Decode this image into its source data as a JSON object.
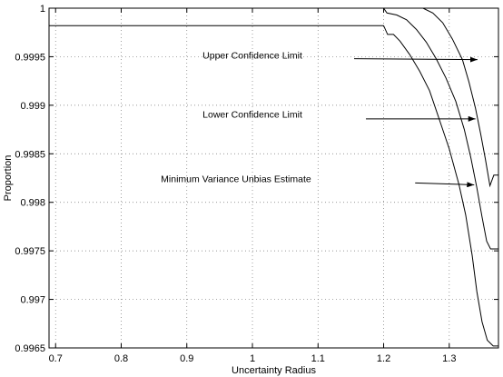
{
  "chart_data": {
    "type": "line",
    "title": "",
    "xlabel": "Uncertainty Radius",
    "ylabel": "Proportion",
    "xlim": [
      0.69,
      1.375
    ],
    "ylim": [
      0.9965,
      1.0
    ],
    "grid": true,
    "x_ticks": [
      0.7,
      0.8,
      0.9,
      1.0,
      1.1,
      1.2,
      1.3
    ],
    "x_tick_labels": [
      "0.7",
      "0.8",
      "0.9",
      "1",
      "1.1",
      "1.2",
      "1.3"
    ],
    "y_ticks": [
      0.9965,
      0.997,
      0.9975,
      0.998,
      0.9985,
      0.999,
      0.9995,
      1.0
    ],
    "y_tick_labels": [
      "0.9965",
      "0.997",
      "0.9975",
      "0.998",
      "0.9985",
      "0.999",
      "0.9995",
      "1"
    ],
    "series": [
      {
        "values": [
          [
            0.69,
            1.0
          ],
          [
            1.26,
            1.0
          ],
          [
            1.275,
            0.99995
          ],
          [
            1.29,
            0.99985
          ],
          [
            1.305,
            0.99968
          ],
          [
            1.32,
            0.99947
          ],
          [
            1.33,
            0.99924
          ],
          [
            1.34,
            0.99897
          ],
          [
            1.348,
            0.9987
          ],
          [
            1.355,
            0.99845
          ],
          [
            1.362,
            0.99817
          ],
          [
            1.368,
            0.99828
          ],
          [
            1.375,
            0.99828
          ]
        ]
      },
      {
        "values": [
          [
            1.2,
            1.0
          ],
          [
            1.205,
            0.99995
          ],
          [
            1.22,
            0.99993
          ],
          [
            1.235,
            0.99988
          ],
          [
            1.25,
            0.99978
          ],
          [
            1.265,
            0.99965
          ],
          [
            1.28,
            0.99948
          ],
          [
            1.295,
            0.99928
          ],
          [
            1.31,
            0.99904
          ],
          [
            1.323,
            0.99875
          ],
          [
            1.333,
            0.99846
          ],
          [
            1.342,
            0.99815
          ],
          [
            1.35,
            0.99785
          ],
          [
            1.357,
            0.9976
          ],
          [
            1.363,
            0.99752
          ],
          [
            1.375,
            0.99752
          ]
        ]
      },
      {
        "values": [
          [
            0.69,
            0.99982
          ],
          [
            1.2,
            0.99982
          ],
          [
            1.206,
            0.99973
          ],
          [
            1.215,
            0.99973
          ],
          [
            1.225,
            0.99966
          ],
          [
            1.24,
            0.99952
          ],
          [
            1.255,
            0.99935
          ],
          [
            1.27,
            0.99915
          ],
          [
            1.285,
            0.99885
          ],
          [
            1.3,
            0.99855
          ],
          [
            1.315,
            0.99818
          ],
          [
            1.325,
            0.99787
          ],
          [
            1.335,
            0.99745
          ],
          [
            1.342,
            0.99708
          ],
          [
            1.35,
            0.99677
          ],
          [
            1.358,
            0.99658
          ],
          [
            1.367,
            0.99652
          ],
          [
            1.375,
            0.99652
          ]
        ]
      }
    ],
    "annotations": [
      {
        "text": "Upper Confidence Limit",
        "text_x": 1.0,
        "text_y": 0.99948,
        "arrow_from": [
          1.155,
          0.99948
        ],
        "arrow_to": [
          1.343,
          0.99947
        ]
      },
      {
        "text": "Lower Confidence Limit",
        "text_x": 1.0,
        "text_y": 0.99887,
        "arrow_from": [
          1.173,
          0.99886
        ],
        "arrow_to": [
          1.34,
          0.99886
        ]
      },
      {
        "text": "Minimum Variance Unbias Estimate",
        "text_x": 0.975,
        "text_y": 0.99821,
        "arrow_from": [
          1.248,
          0.9982
        ],
        "arrow_to": [
          1.338,
          0.99818
        ]
      }
    ]
  }
}
